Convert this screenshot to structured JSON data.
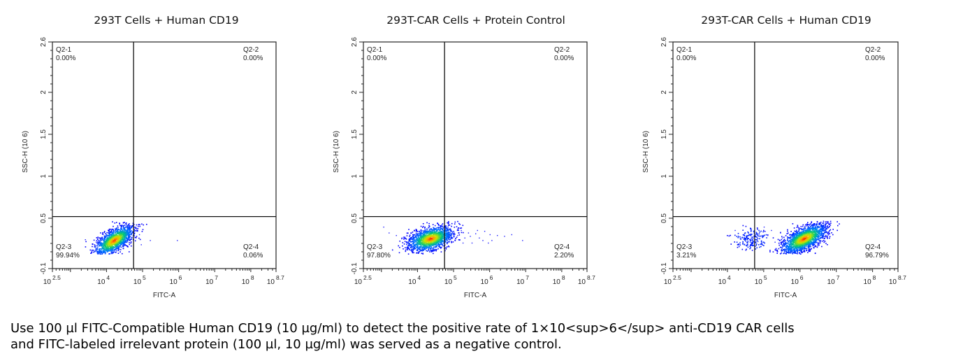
{
  "chart_data": [
    {
      "type": "scatter",
      "title": "293T Cells + Human CD19",
      "xlabel": "FITC-A",
      "ylabel": "SSC-H (10^6)",
      "xscale": "log",
      "xlim_log10": [
        2.5,
        8.7
      ],
      "ylim": [
        -0.1,
        2.6
      ],
      "x_ticks": [
        {
          "base": "10",
          "exp": "2.5",
          "log": 2.5
        },
        {
          "base": "10",
          "exp": "4",
          "log": 4
        },
        {
          "base": "10",
          "exp": "5",
          "log": 5
        },
        {
          "base": "10",
          "exp": "6",
          "log": 6
        },
        {
          "base": "10",
          "exp": "7",
          "log": 7
        },
        {
          "base": "10",
          "exp": "8",
          "log": 8
        },
        {
          "base": "10",
          "exp": "8.7",
          "log": 8.7
        }
      ],
      "y_ticks": [
        "-0.1",
        "0.5",
        "1",
        "1.5",
        "2",
        "2.6"
      ],
      "gate": {
        "x_log10": 4.75,
        "y": 0.52
      },
      "quadrants": [
        {
          "name": "Q2-1",
          "value": "0.00%"
        },
        {
          "name": "Q2-2",
          "value": "0.00%"
        },
        {
          "name": "Q2-3",
          "value": "99.94%"
        },
        {
          "name": "Q2-4",
          "value": "0.06%"
        }
      ],
      "populations": [
        {
          "center_x_log10": 4.2,
          "center_y": 0.24,
          "spread_x": 0.28,
          "spread_y": 0.07,
          "tilt": 0.22,
          "count": 1400
        }
      ],
      "outliers": [
        [
          3.4,
          0.25
        ],
        [
          3.7,
          0.22
        ],
        [
          4.95,
          0.19
        ],
        [
          5.2,
          0.24
        ],
        [
          5.95,
          0.24
        ],
        [
          4.9,
          0.31
        ]
      ]
    },
    {
      "type": "scatter",
      "title": "293T-CAR Cells + Protein Control",
      "xlabel": "FITC-A",
      "ylabel": "SSC-H (10^6)",
      "xscale": "log",
      "xlim_log10": [
        2.5,
        8.7
      ],
      "ylim": [
        -0.1,
        2.6
      ],
      "x_ticks": [
        {
          "base": "10",
          "exp": "2.5",
          "log": 2.5
        },
        {
          "base": "10",
          "exp": "4",
          "log": 4
        },
        {
          "base": "10",
          "exp": "5",
          "log": 5
        },
        {
          "base": "10",
          "exp": "6",
          "log": 6
        },
        {
          "base": "10",
          "exp": "7",
          "log": 7
        },
        {
          "base": "10",
          "exp": "8",
          "log": 8
        },
        {
          "base": "10",
          "exp": "8.7",
          "log": 8.7
        }
      ],
      "y_ticks": [
        "-0.1",
        "0.5",
        "1",
        "1.5",
        "2",
        "2.6"
      ],
      "gate": {
        "x_log10": 4.75,
        "y": 0.52
      },
      "quadrants": [
        {
          "name": "Q2-1",
          "value": "0.00%"
        },
        {
          "name": "Q2-2",
          "value": "0.00%"
        },
        {
          "name": "Q2-3",
          "value": "97.80%"
        },
        {
          "name": "Q2-4",
          "value": "2.20%"
        }
      ],
      "populations": [
        {
          "center_x_log10": 4.35,
          "center_y": 0.26,
          "spread_x": 0.32,
          "spread_y": 0.07,
          "tilt": 0.1,
          "count": 1500
        }
      ],
      "outliers": [
        [
          3.05,
          0.4
        ],
        [
          3.2,
          0.33
        ],
        [
          3.4,
          0.3
        ],
        [
          3.55,
          0.26
        ],
        [
          3.7,
          0.33
        ],
        [
          3.6,
          0.28
        ],
        [
          4.9,
          0.38
        ],
        [
          5.0,
          0.33
        ],
        [
          5.1,
          0.3
        ],
        [
          5.2,
          0.36
        ],
        [
          5.3,
          0.27
        ],
        [
          5.4,
          0.33
        ],
        [
          5.5,
          0.21
        ],
        [
          5.6,
          0.32
        ],
        [
          5.7,
          0.27
        ],
        [
          5.8,
          0.24
        ],
        [
          5.85,
          0.35
        ],
        [
          5.95,
          0.21
        ],
        [
          6.05,
          0.24
        ],
        [
          6.2,
          0.3
        ],
        [
          6.4,
          0.29
        ],
        [
          6.6,
          0.31
        ],
        [
          6.9,
          0.24
        ],
        [
          5.25,
          0.21
        ],
        [
          5.45,
          0.29
        ],
        [
          5.65,
          0.36
        ],
        [
          6.0,
          0.31
        ],
        [
          5.05,
          0.26
        ]
      ]
    },
    {
      "type": "scatter",
      "title": "293T-CAR Cells + Human CD19",
      "xlabel": "FITC-A",
      "ylabel": "SSC-H (10^6)",
      "xscale": "log",
      "xlim_log10": [
        2.5,
        8.7
      ],
      "ylim": [
        -0.1,
        2.6
      ],
      "x_ticks": [
        {
          "base": "10",
          "exp": "2.5",
          "log": 2.5
        },
        {
          "base": "10",
          "exp": "4",
          "log": 4
        },
        {
          "base": "10",
          "exp": "5",
          "log": 5
        },
        {
          "base": "10",
          "exp": "6",
          "log": 6
        },
        {
          "base": "10",
          "exp": "7",
          "log": 7
        },
        {
          "base": "10",
          "exp": "8",
          "log": 8
        },
        {
          "base": "10",
          "exp": "8.7",
          "log": 8.7
        }
      ],
      "y_ticks": [
        "-0.1",
        "0.5",
        "1",
        "1.5",
        "2",
        "2.6"
      ],
      "gate": {
        "x_log10": 4.75,
        "y": 0.52
      },
      "quadrants": [
        {
          "name": "Q2-1",
          "value": "0.00%"
        },
        {
          "name": "Q2-2",
          "value": "0.00%"
        },
        {
          "name": "Q2-3",
          "value": "3.21%"
        },
        {
          "name": "Q2-4",
          "value": "96.79%"
        }
      ],
      "populations": [
        {
          "center_x_log10": 6.1,
          "center_y": 0.26,
          "spread_x": 0.32,
          "spread_y": 0.07,
          "tilt": 0.18,
          "count": 1700
        },
        {
          "center_x_log10": 4.65,
          "center_y": 0.26,
          "spread_x": 0.22,
          "spread_y": 0.06,
          "tilt": 0.0,
          "count": 180,
          "sparse": true
        }
      ],
      "outliers": [
        [
          5.1,
          0.3
        ],
        [
          5.2,
          0.36
        ],
        [
          5.3,
          0.22
        ],
        [
          5.45,
          0.33
        ],
        [
          5.5,
          0.27
        ],
        [
          5.0,
          0.4
        ],
        [
          4.2,
          0.36
        ],
        [
          4.3,
          0.2
        ]
      ]
    }
  ],
  "caption": {
    "line1": "Use 100 µl FITC-Compatible Human CD19 (10 µg/ml) to detect the positive rate of 1×10<sup>6</sup> anti-CD19 CAR cells",
    "line2": "and FITC-labeled irrelevant protein (100 µl, 10 µg/ml) was served as a negative control."
  },
  "colors": {
    "axis": "#222222",
    "density_low": "#0000ff",
    "density_mid": "#00c060",
    "density_high_1": "#ffff00",
    "density_high_2": "#ff0000"
  }
}
